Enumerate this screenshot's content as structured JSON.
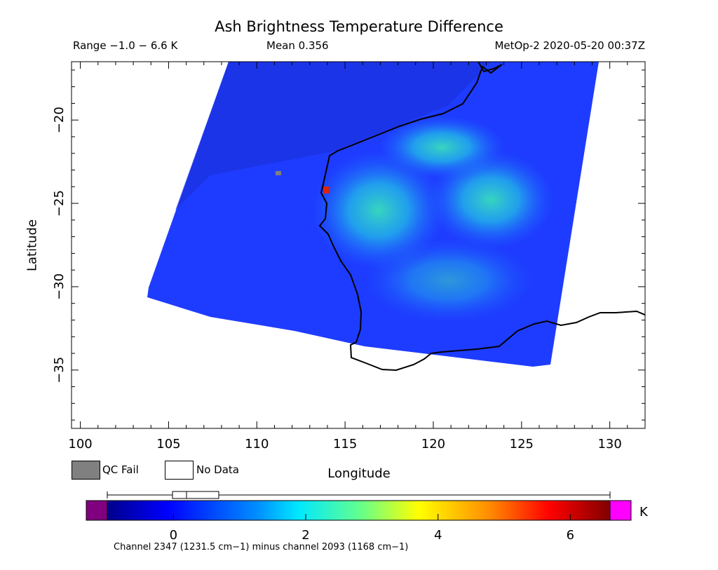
{
  "header": {
    "title": "Ash Brightness Temperature Difference",
    "range": "Range −1.0 − 6.6 K",
    "mean": "Mean 0.356",
    "satellite_time": "MetOp-2 2020-05-20 00:37Z"
  },
  "axes": {
    "x_label": "Longitude",
    "y_label": "Latitude",
    "x_ticks": [
      "100",
      "105",
      "110",
      "115",
      "120",
      "125",
      "130"
    ],
    "y_ticks": [
      "−20",
      "−25",
      "−30",
      "−35"
    ]
  },
  "legend": {
    "qc_fail": "QC Fail",
    "no_data": "No Data",
    "qc_fail_color": "#808080",
    "no_data_color": "#ffffff"
  },
  "colorbar": {
    "unit": "K",
    "ticks": [
      "0",
      "2",
      "4",
      "6"
    ],
    "caption": "Channel 2347 (1231.5 cm−1) minus channel 2093 (1168 cm−1)",
    "low_color": "#800080",
    "high_color": "#ff00ff"
  },
  "map": {
    "extent": {
      "lon": [
        99.5,
        132
      ],
      "lat": [
        -38.5,
        -16.5
      ]
    },
    "swath_color": "#1e3cff",
    "coast_color": "#000000"
  }
}
